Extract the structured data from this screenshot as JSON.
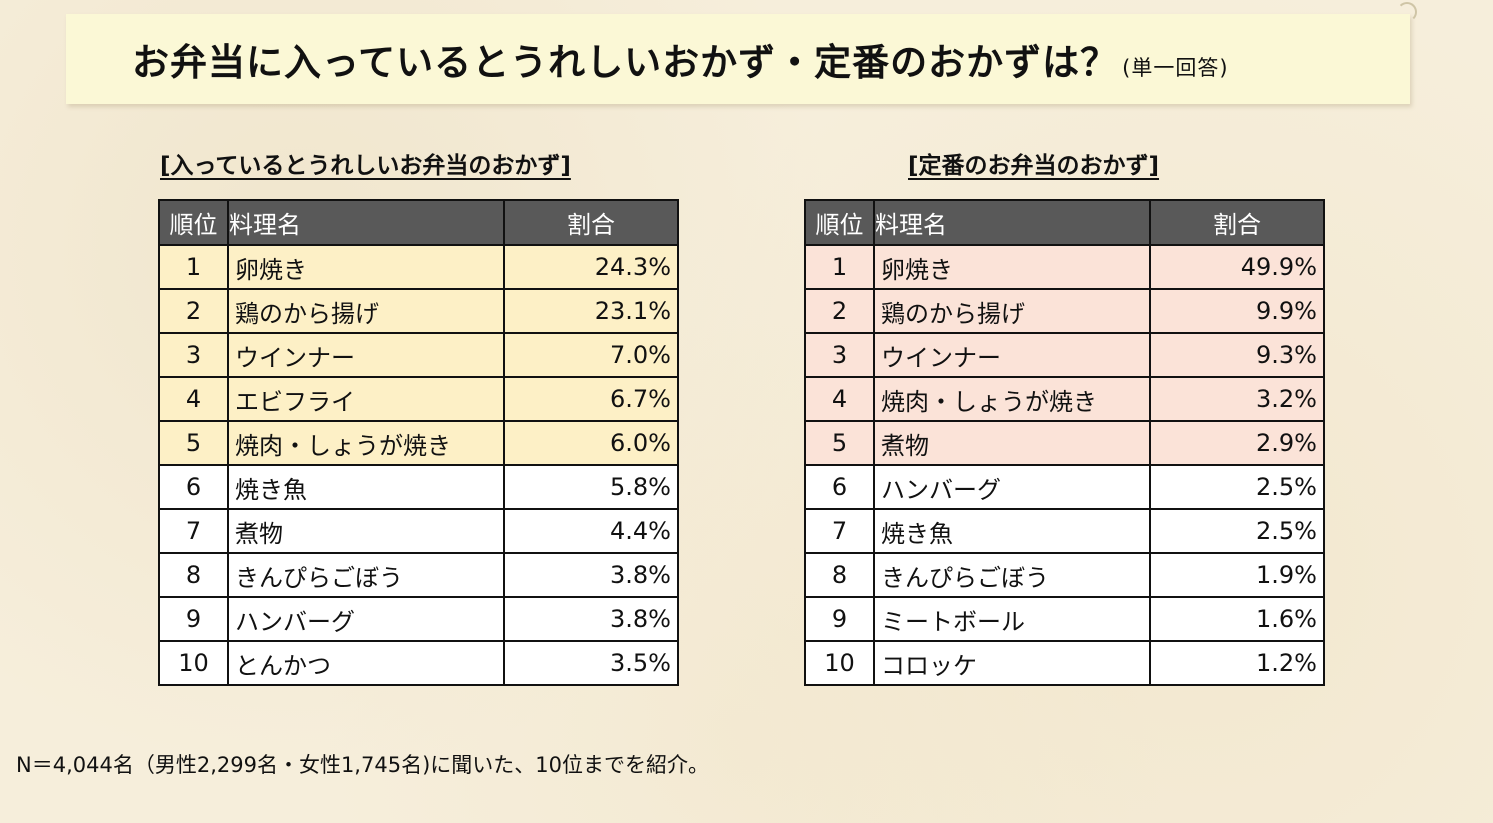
{
  "title": {
    "main": "お弁当に入っているとうれしいおかず・定番のおかずは？",
    "note": "(単一回答)"
  },
  "left_table": {
    "heading": "[入っているとうれしいお弁当のおかず]",
    "headers": [
      "順位",
      "料理名",
      "割合"
    ],
    "rows": [
      {
        "rank": "1",
        "dish": "卵焼き",
        "pct": "24.3%"
      },
      {
        "rank": "2",
        "dish": "鶏のから揚げ",
        "pct": "23.1%"
      },
      {
        "rank": "3",
        "dish": "ウインナー",
        "pct": "7.0%"
      },
      {
        "rank": "4",
        "dish": "エビフライ",
        "pct": "6.7%"
      },
      {
        "rank": "5",
        "dish": "焼肉・しょうが焼き",
        "pct": "6.0%"
      },
      {
        "rank": "6",
        "dish": "焼き魚",
        "pct": "5.8%"
      },
      {
        "rank": "7",
        "dish": "煮物",
        "pct": "4.4%"
      },
      {
        "rank": "8",
        "dish": "きんぴらごぼう",
        "pct": "3.8%"
      },
      {
        "rank": "9",
        "dish": "ハンバーグ",
        "pct": "3.8%"
      },
      {
        "rank": "10",
        "dish": "とんかつ",
        "pct": "3.5%"
      }
    ]
  },
  "right_table": {
    "heading": "[定番のお弁当のおかず]",
    "headers": [
      "順位",
      "料理名",
      "割合"
    ],
    "rows": [
      {
        "rank": "1",
        "dish": "卵焼き",
        "pct": "49.9%"
      },
      {
        "rank": "2",
        "dish": "鶏のから揚げ",
        "pct": "9.9%"
      },
      {
        "rank": "3",
        "dish": "ウインナー",
        "pct": "9.3%"
      },
      {
        "rank": "4",
        "dish": "焼肉・しょうが焼き",
        "pct": "3.2%"
      },
      {
        "rank": "5",
        "dish": "煮物",
        "pct": "2.9%"
      },
      {
        "rank": "6",
        "dish": "ハンバーグ",
        "pct": "2.5%"
      },
      {
        "rank": "7",
        "dish": "焼き魚",
        "pct": "2.5%"
      },
      {
        "rank": "8",
        "dish": "きんぴらごぼう",
        "pct": "1.9%"
      },
      {
        "rank": "9",
        "dish": "ミートボール",
        "pct": "1.6%"
      },
      {
        "rank": "10",
        "dish": "コロッケ",
        "pct": "1.2%"
      }
    ]
  },
  "colors": {
    "header_bg": "#595959",
    "left_highlight": "#fdf0c6",
    "right_highlight": "#fbe3d8",
    "banner_bg": "#fbf8d6"
  },
  "footnote": "N＝4,044名（男性2,299名・女性1,745名)に聞いた、10位までを紹介。"
}
